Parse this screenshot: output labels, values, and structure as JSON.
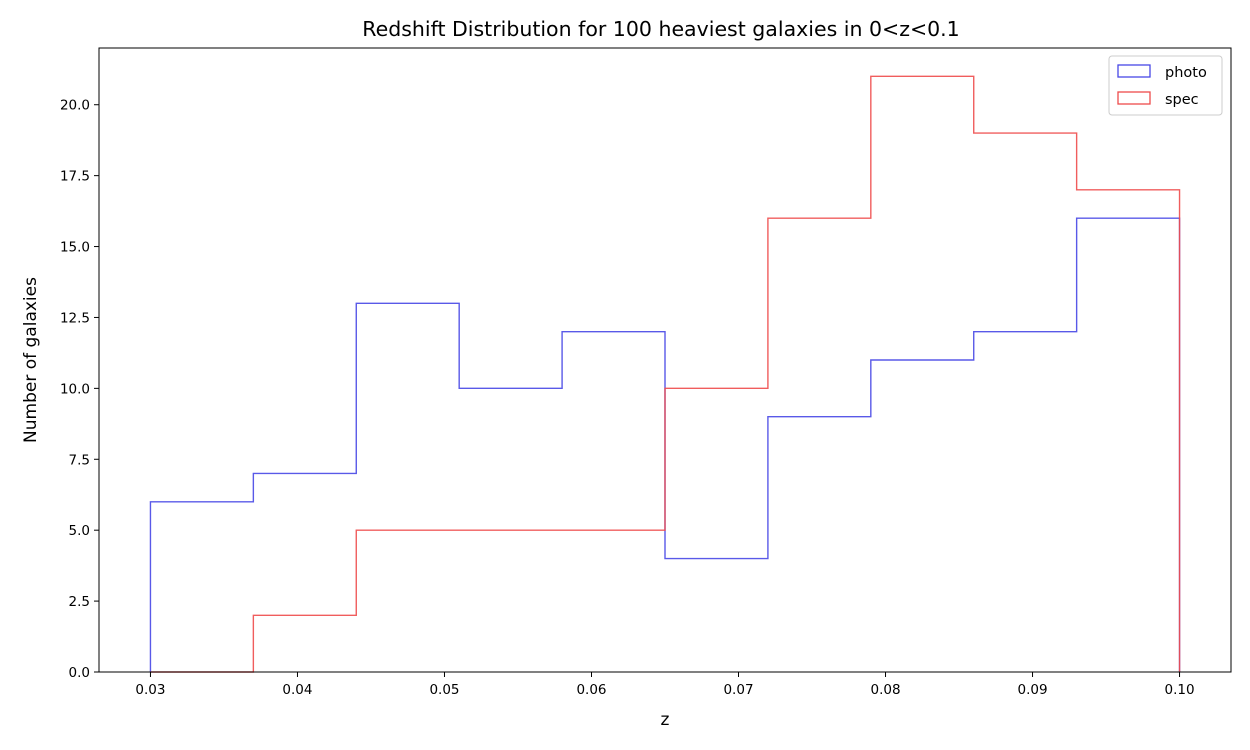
{
  "chart_data": {
    "type": "histogram-step",
    "title": "Redshift Distribution for 100 heaviest galaxies in 0<z<0.1",
    "xlabel": "z",
    "ylabel": "Number of galaxies",
    "xlim": [
      0.0265,
      0.1035
    ],
    "ylim": [
      0,
      22
    ],
    "xticks": [
      0.03,
      0.04,
      0.05,
      0.06,
      0.07,
      0.08,
      0.09,
      0.1
    ],
    "xtick_labels": [
      "0.03",
      "0.04",
      "0.05",
      "0.06",
      "0.07",
      "0.08",
      "0.09",
      "0.10"
    ],
    "yticks": [
      0,
      2.5,
      5,
      7.5,
      10,
      12.5,
      15,
      17.5,
      20
    ],
    "ytick_labels": [
      "0.0",
      "2.5",
      "5.0",
      "7.5",
      "10.0",
      "12.5",
      "15.0",
      "17.5",
      "20.0"
    ],
    "grid": false,
    "legend_position": "top-right",
    "bin_edges": [
      0.03,
      0.037,
      0.044,
      0.051,
      0.058,
      0.065,
      0.072,
      0.079,
      0.086,
      0.093,
      0.1
    ],
    "series": [
      {
        "name": "photo",
        "color": "#4747e6",
        "values": [
          6,
          7,
          13,
          10,
          12,
          4,
          9,
          11,
          12,
          16
        ]
      },
      {
        "name": "spec",
        "color": "#ee4b4b",
        "values": [
          0,
          2,
          5,
          5,
          5,
          10,
          16,
          21,
          19,
          17
        ]
      }
    ]
  }
}
